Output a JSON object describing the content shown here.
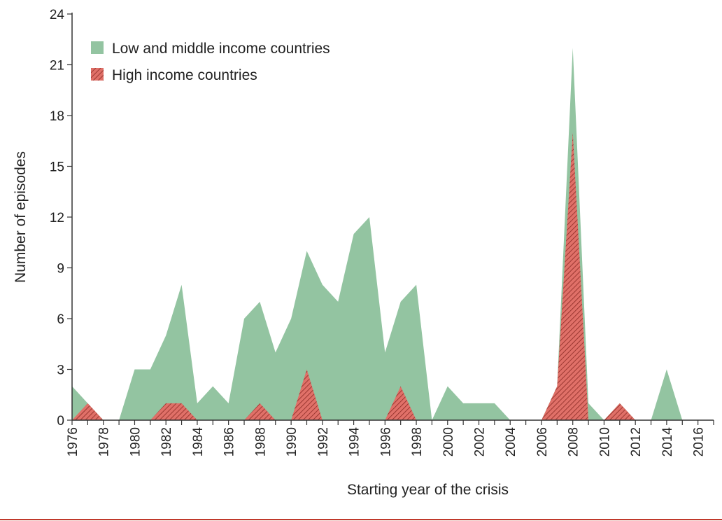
{
  "chart_data": {
    "type": "area",
    "title": "",
    "xlabel": "Starting year of the crisis",
    "ylabel": "Number of episodes",
    "xlim": [
      1976,
      2017
    ],
    "ylim": [
      0,
      24
    ],
    "x_ticks": [
      "1976",
      "1978",
      "1980",
      "1982",
      "1984",
      "1986",
      "1988",
      "1990",
      "1992",
      "1994",
      "1996",
      "1998",
      "2000",
      "2002",
      "2004",
      "2006",
      "2008",
      "2010",
      "2012",
      "2014",
      "2016"
    ],
    "y_ticks": [
      "0",
      "3",
      "6",
      "9",
      "12",
      "15",
      "18",
      "21",
      "24"
    ],
    "legend_position": "top-left",
    "x": [
      1976,
      1977,
      1978,
      1979,
      1980,
      1981,
      1982,
      1983,
      1984,
      1985,
      1986,
      1987,
      1988,
      1989,
      1990,
      1991,
      1992,
      1993,
      1994,
      1995,
      1996,
      1997,
      1998,
      1999,
      2000,
      2001,
      2002,
      2003,
      2004,
      2005,
      2006,
      2007,
      2008,
      2009,
      2010,
      2011,
      2012,
      2013,
      2014,
      2015,
      2016
    ],
    "series": [
      {
        "name": "Low and middle income countries",
        "color": "#93c4a1",
        "pattern": "solid",
        "values": [
          2,
          1,
          0,
          0,
          3,
          3,
          5,
          8,
          1,
          2,
          1,
          6,
          7,
          4,
          6,
          10,
          8,
          7,
          11,
          12,
          4,
          7,
          8,
          0,
          2,
          1,
          1,
          1,
          0,
          0,
          0,
          2,
          22,
          1,
          0,
          1,
          0,
          0,
          3,
          0,
          0
        ]
      },
      {
        "name": "High income countries",
        "color": "#e07068",
        "pattern": "hatched",
        "values": [
          0,
          1,
          0,
          0,
          0,
          0,
          1,
          1,
          0,
          0,
          0,
          0,
          1,
          0,
          0,
          3,
          0,
          0,
          0,
          0,
          0,
          2,
          0,
          0,
          0,
          0,
          0,
          0,
          0,
          0,
          0,
          2,
          17,
          0,
          0,
          1,
          0,
          0,
          0,
          0,
          0
        ]
      }
    ]
  }
}
